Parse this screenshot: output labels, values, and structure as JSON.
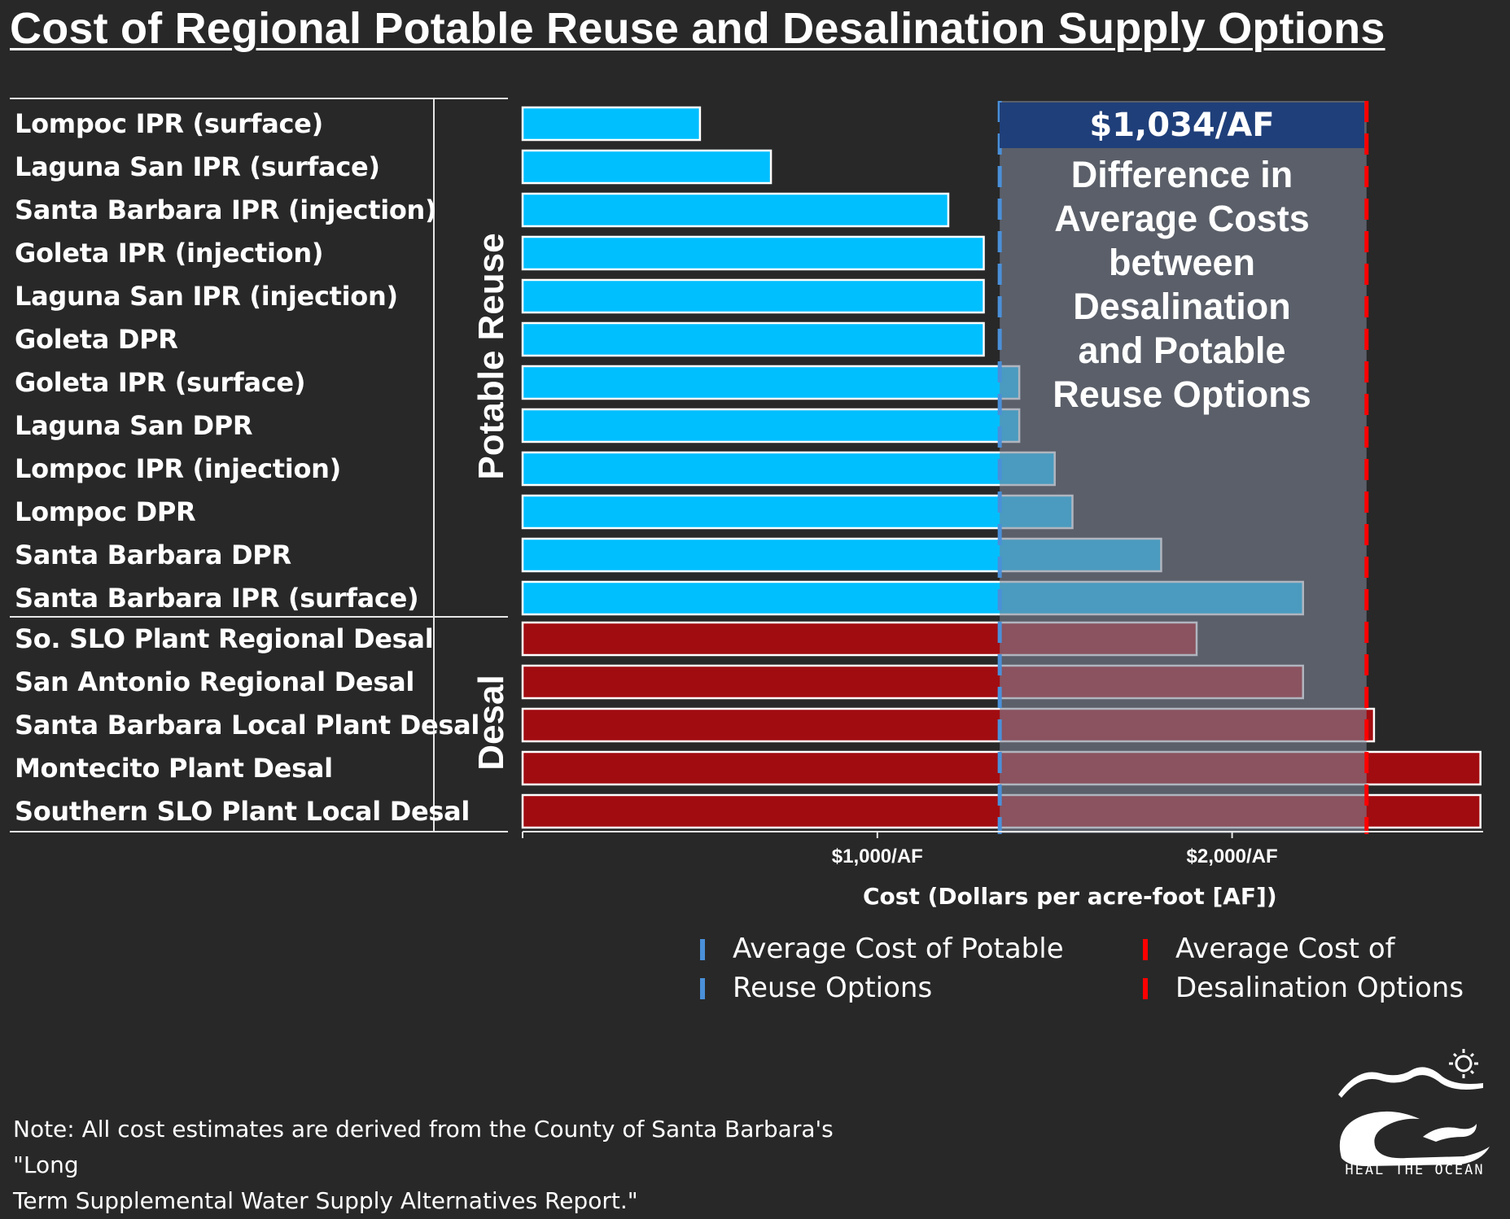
{
  "title": "Cost of Regional Potable Reuse and Desalination Supply Options",
  "chart_data": {
    "type": "bar",
    "orientation": "horizontal",
    "groups": [
      {
        "name": "Potable Reuse",
        "color": "#00bfff",
        "categories": [
          "Lompoc IPR (surface)",
          "Laguna San IPR (surface)",
          "Santa Barbara IPR (injection)",
          "Goleta IPR (injection)",
          "Laguna San IPR (injection)",
          "Goleta DPR",
          "Goleta IPR (surface)",
          "Laguna San DPR",
          "Lompoc IPR (injection)",
          "Lompoc DPR",
          "Santa Barbara DPR",
          "Santa Barbara IPR (surface)"
        ],
        "values": [
          500,
          700,
          1200,
          1300,
          1300,
          1300,
          1400,
          1400,
          1500,
          1550,
          1800,
          2200
        ]
      },
      {
        "name": "Desal",
        "color": "#a10c10",
        "categories": [
          "So. SLO Plant Regional Desal",
          "San Antonio Regional Desal",
          "Santa Barbara Local Plant Desal",
          "Montecito Plant Desal",
          "Southern SLO Plant Local Desal"
        ],
        "values": [
          1900,
          2200,
          2400,
          2700,
          2700
        ]
      }
    ],
    "xlabel": "Cost (Dollars per acre-foot [AF])",
    "xlim": [
      0,
      2700
    ],
    "xticks": [
      {
        "value": 1000,
        "label": "$1,000/AF"
      },
      {
        "value": 2000,
        "label": "$2,000/AF"
      }
    ],
    "reference_lines": [
      {
        "value": 1345,
        "color": "#4a90d9",
        "style": "dashed"
      },
      {
        "value": 2379,
        "color": "#ff0000",
        "style": "dashed"
      }
    ],
    "annotation": {
      "header": "$1,034/AF",
      "text": "Difference in\nAverage Costs\nbetween\nDesalination\nand Potable\nReuse Options",
      "header_color": "#1f3f7a",
      "shade_color": "#7b8494"
    },
    "legend": {
      "placement": "bottom-right",
      "items": [
        {
          "line1": "Average Cost of Potable",
          "line2": "Reuse Options",
          "color": "#4a90d9"
        },
        {
          "line1": "Average Cost of",
          "line2": "Desalination Options",
          "color": "#ff0000"
        }
      ]
    },
    "grid": false
  },
  "note": "Note: All cost estimates are derived from the County of Santa Barbara's \"Long\nTerm Supplemental Water Supply Alternatives Report.\"",
  "logo": {
    "text": "HEAL THE OCEAN"
  }
}
